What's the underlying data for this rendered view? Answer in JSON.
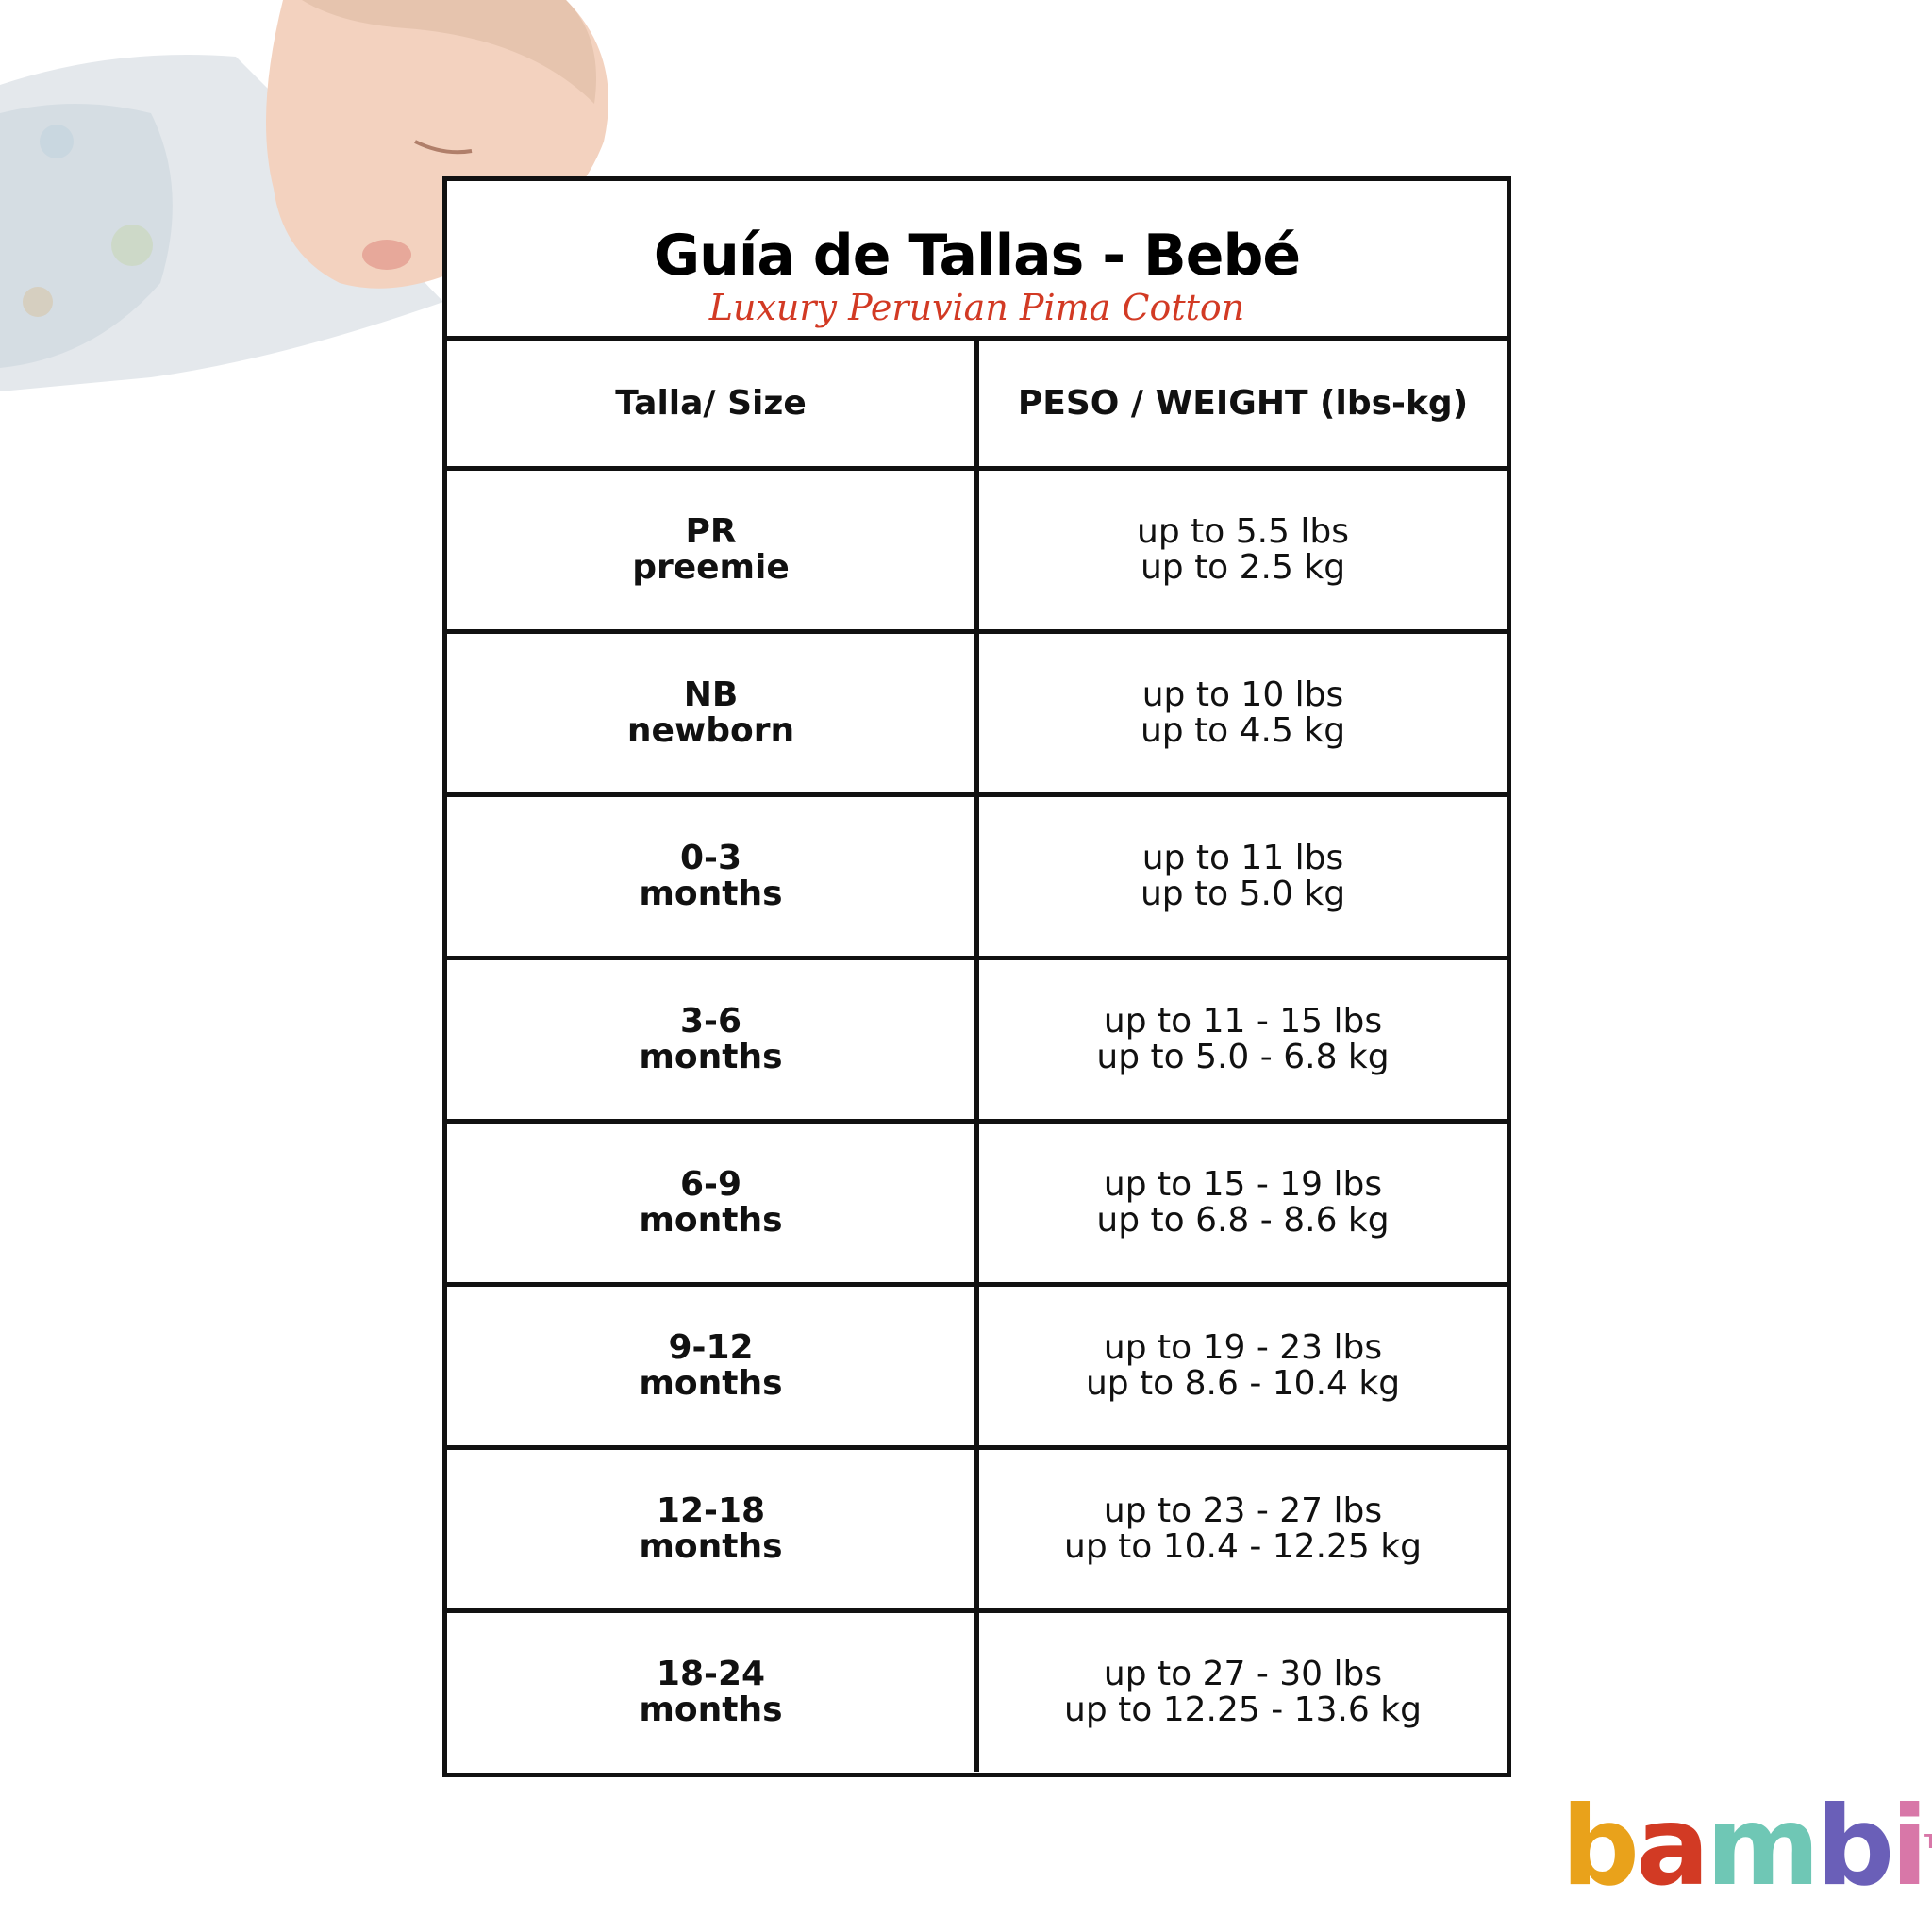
{
  "header": {
    "title": "Guía de Tallas - Bebé",
    "subtitle": "Luxury Peruvian Pima Cotton"
  },
  "table": {
    "columns": [
      "Talla/ Size",
      "PESO / WEIGHT (lbs-kg)"
    ],
    "rows": [
      {
        "size": [
          "PR",
          "preemie"
        ],
        "weight": [
          "up to 5.5 lbs",
          "up to 2.5 kg"
        ]
      },
      {
        "size": [
          "NB",
          "newborn"
        ],
        "weight": [
          "up to 10 lbs",
          "up to 4.5 kg"
        ]
      },
      {
        "size": [
          "0-3",
          "months"
        ],
        "weight": [
          "up to 11 lbs",
          "up to 5.0 kg"
        ]
      },
      {
        "size": [
          "3-6",
          "months"
        ],
        "weight": [
          "up to 11 - 15 lbs",
          "up to 5.0 - 6.8 kg"
        ]
      },
      {
        "size": [
          "6-9",
          "months"
        ],
        "weight": [
          "up to 15 - 19 lbs",
          "up to 6.8 - 8.6 kg"
        ]
      },
      {
        "size": [
          "9-12",
          "months"
        ],
        "weight": [
          "up to 19 - 23 lbs",
          "up to 8.6 - 10.4 kg"
        ]
      },
      {
        "size": [
          "12-18",
          "months"
        ],
        "weight": [
          "up to 23 - 27 lbs",
          "up to 10.4 - 12.25 kg"
        ]
      },
      {
        "size": [
          "18-24",
          "months"
        ],
        "weight": [
          "up to 27 - 30 lbs",
          "up to 12.25 - 13.6 kg"
        ]
      }
    ]
  },
  "logo": {
    "letters": [
      "b",
      "a",
      "m",
      "b",
      "i"
    ],
    "colors": [
      "#e9a21b",
      "#d23a24",
      "#6fc7b5",
      "#6a5fb8",
      "#d877a8"
    ],
    "tm": "TM"
  },
  "colors": {
    "subtitle": "#d23a24",
    "border": "#111111"
  }
}
